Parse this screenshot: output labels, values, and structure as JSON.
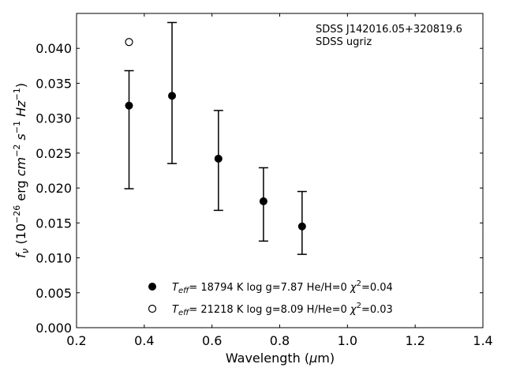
{
  "chart_data": {
    "type": "scatter",
    "annotation_lines": [
      "SDSS J142016.05+320819.6",
      "SDSS ugriz"
    ],
    "xlabel": "Wavelength (μm)",
    "ylabel": "fν (10⁻²⁶ erg cm⁻² s⁻¹ Hz⁻¹)",
    "xlim": [
      0.2,
      1.4
    ],
    "ylim": [
      0.0,
      0.045
    ],
    "x_ticks": [
      0.2,
      0.4,
      0.6,
      0.8,
      1.0,
      1.2,
      1.4
    ],
    "x_tick_labels": [
      "0.2",
      "0.4",
      "0.6",
      "0.8",
      "1.0",
      "1.2",
      "1.4"
    ],
    "y_ticks": [
      0.0,
      0.005,
      0.01,
      0.015,
      0.02,
      0.025,
      0.03,
      0.035,
      0.04
    ],
    "y_tick_labels": [
      "0.000",
      "0.005",
      "0.010",
      "0.015",
      "0.020",
      "0.025",
      "0.030",
      "0.035",
      "0.040"
    ],
    "grid": false,
    "legend_position": "bottom-center",
    "series": [
      {
        "marker": "filled-circle",
        "legend_parts": {
          "teff": "= 18794 K  log g=7.87  He/H=0  ",
          "chi": "=0.04"
        },
        "x": [
          0.355,
          0.482,
          0.619,
          0.752,
          0.866
        ],
        "y": [
          0.0318,
          0.0332,
          0.0242,
          0.0181,
          0.0145
        ],
        "y_err_low": [
          0.0199,
          0.0235,
          0.0168,
          0.0124,
          0.0105
        ],
        "y_err_high": [
          0.0368,
          0.0437,
          0.0311,
          0.0229,
          0.0195
        ]
      },
      {
        "marker": "open-circle",
        "legend_parts": {
          "teff": "= 21218 K  log g=8.09  H/He=0  ",
          "chi": "=0.03"
        },
        "x": [
          0.355
        ],
        "y": [
          0.0409
        ]
      }
    ],
    "colors": {
      "marker": "#000000",
      "axes": "#000000",
      "background": "#ffffff"
    }
  }
}
